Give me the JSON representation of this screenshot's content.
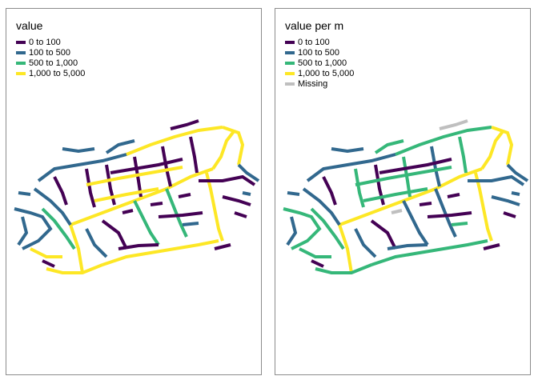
{
  "panels": [
    {
      "legend_title": "value",
      "classes": [
        {
          "label": "0 to 100",
          "color": "#440154"
        },
        {
          "label": "100 to 500",
          "color": "#31688e"
        },
        {
          "label": "500 to 1,000",
          "color": "#35b779"
        },
        {
          "label": "1,000 to 5,000",
          "color": "#fde725"
        }
      ]
    },
    {
      "legend_title": "value per m",
      "classes": [
        {
          "label": "0 to 100",
          "color": "#440154"
        },
        {
          "label": "100 to 500",
          "color": "#31688e"
        },
        {
          "label": "500 to 1,000",
          "color": "#35b779"
        },
        {
          "label": "1,000 to 5,000",
          "color": "#fde725"
        },
        {
          "label": "Missing",
          "color": "#bfbfbf"
        }
      ]
    }
  ]
}
